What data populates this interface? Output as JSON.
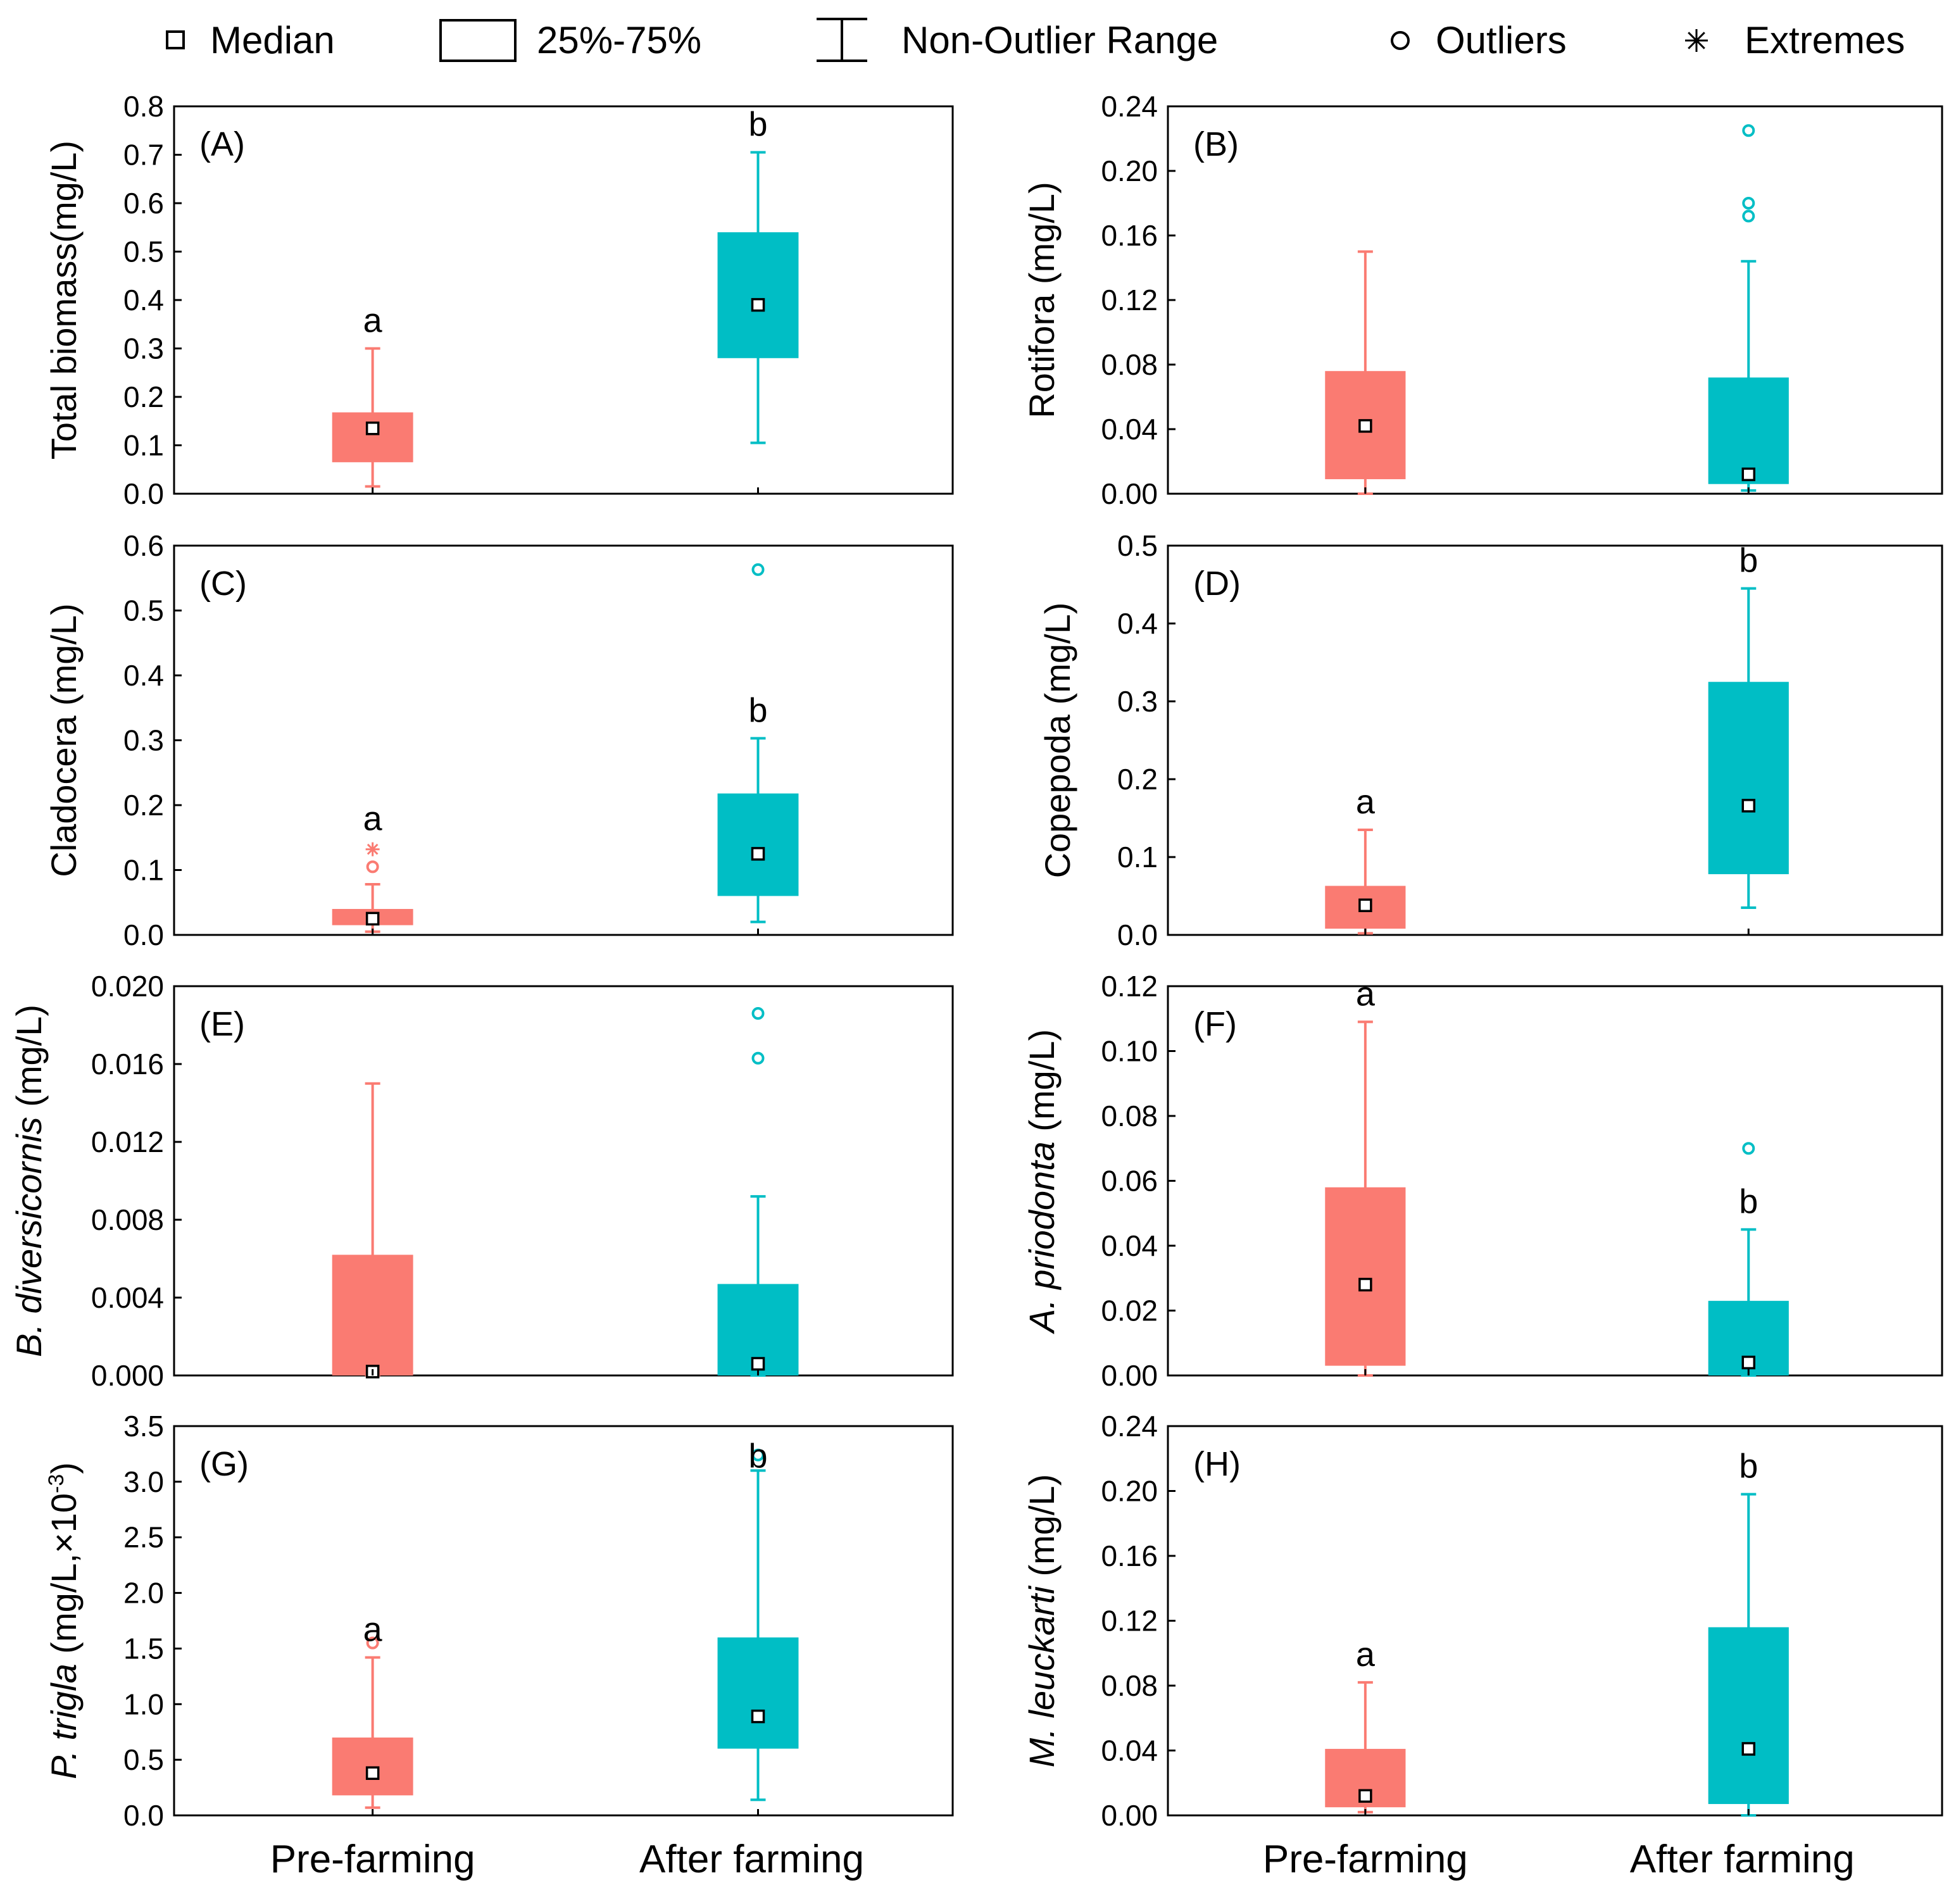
{
  "colors": {
    "pre": "#fa7b72",
    "after": "#00bec5",
    "axis": "#000000"
  },
  "legend": {
    "items": [
      {
        "label": "Median",
        "symbol": "square"
      },
      {
        "label": "25%-75%",
        "symbol": "box"
      },
      {
        "label": "Non-Outlier Range",
        "symbol": "whisker"
      },
      {
        "label": "Outliers",
        "symbol": "circle"
      },
      {
        "label": "Extremes",
        "symbol": "asterisk"
      }
    ]
  },
  "chart_data": [
    {
      "type": "box",
      "panel": "(A)",
      "ylabel": "Total biomass(mg/L)",
      "categories": [
        "Pre-farming",
        "After farming"
      ],
      "ylim": [
        0,
        0.8
      ],
      "yticks": [
        "0.0",
        "0.1",
        "0.2",
        "0.3",
        "0.4",
        "0.5",
        "0.6",
        "0.7",
        "0.8"
      ],
      "show_xlabels": false,
      "series": [
        {
          "name": "Pre-farming",
          "min": 0.015,
          "q1": 0.065,
          "median": 0.135,
          "q3": 0.168,
          "max": 0.3,
          "outliers": [],
          "extremes": [],
          "label": "a"
        },
        {
          "name": "After farming",
          "min": 0.105,
          "q1": 0.28,
          "median": 0.39,
          "q3": 0.54,
          "max": 0.705,
          "outliers": [],
          "extremes": [],
          "label": "b"
        }
      ]
    },
    {
      "type": "box",
      "panel": "(B)",
      "ylabel": "Rotifora (mg/L)",
      "categories": [
        "Pre-farming",
        "After farming"
      ],
      "ylim": [
        0,
        0.24
      ],
      "yticks": [
        "0.00",
        "0.04",
        "0.08",
        "0.12",
        "0.16",
        "0.20",
        "0.24"
      ],
      "show_xlabels": false,
      "series": [
        {
          "name": "Pre-farming",
          "min": 0.0,
          "q1": 0.009,
          "median": 0.042,
          "q3": 0.076,
          "max": 0.15,
          "outliers": [],
          "extremes": [],
          "label": ""
        },
        {
          "name": "After farming",
          "min": 0.002,
          "q1": 0.006,
          "median": 0.012,
          "q3": 0.072,
          "max": 0.144,
          "outliers": [
            0.172,
            0.18,
            0.225
          ],
          "extremes": [],
          "label": ""
        }
      ]
    },
    {
      "type": "box",
      "panel": "(C)",
      "ylabel": "Cladocera (mg/L)",
      "categories": [
        "Pre-farming",
        "After farming"
      ],
      "ylim": [
        0,
        0.6
      ],
      "yticks": [
        "0.0",
        "0.1",
        "0.2",
        "0.3",
        "0.4",
        "0.5",
        "0.6"
      ],
      "show_xlabels": false,
      "series": [
        {
          "name": "Pre-farming",
          "min": 0.005,
          "q1": 0.015,
          "median": 0.025,
          "q3": 0.04,
          "max": 0.078,
          "outliers": [
            0.105
          ],
          "extremes": [
            0.132
          ],
          "label": "a"
        },
        {
          "name": "After farming",
          "min": 0.02,
          "q1": 0.06,
          "median": 0.125,
          "q3": 0.218,
          "max": 0.303,
          "outliers": [
            0.563
          ],
          "extremes": [],
          "label": "b"
        }
      ]
    },
    {
      "type": "box",
      "panel": "(D)",
      "ylabel": "Copepoda (mg/L)",
      "categories": [
        "Pre-farming",
        "After farming"
      ],
      "ylim": [
        0,
        0.5
      ],
      "yticks": [
        "0.0",
        "0.1",
        "0.2",
        "0.3",
        "0.4",
        "0.5"
      ],
      "show_xlabels": false,
      "series": [
        {
          "name": "Pre-farming",
          "min": 0.002,
          "q1": 0.008,
          "median": 0.038,
          "q3": 0.063,
          "max": 0.135,
          "outliers": [],
          "extremes": [],
          "label": "a"
        },
        {
          "name": "After farming",
          "min": 0.035,
          "q1": 0.078,
          "median": 0.166,
          "q3": 0.325,
          "max": 0.445,
          "outliers": [],
          "extremes": [],
          "label": "b"
        }
      ]
    },
    {
      "type": "box",
      "panel": "(E)",
      "ylabel": "B. diversicornis (mg/L)",
      "ylabel_italic": "B. diversicornis",
      "ylabel_normal": " (mg/L)",
      "categories": [
        "Pre-farming",
        "After farming"
      ],
      "ylim": [
        0,
        0.02
      ],
      "yticks": [
        "0.000",
        "0.004",
        "0.008",
        "0.012",
        "0.016",
        "0.020"
      ],
      "show_xlabels": false,
      "series": [
        {
          "name": "Pre-farming",
          "min": 0.0,
          "q1": 0.0,
          "median": 0.0002,
          "q3": 0.0062,
          "max": 0.015,
          "outliers": [],
          "extremes": [],
          "label": ""
        },
        {
          "name": "After farming",
          "min": 0.0,
          "q1": 0.0,
          "median": 0.0006,
          "q3": 0.0047,
          "max": 0.0092,
          "outliers": [
            0.0163,
            0.0186
          ],
          "extremes": [],
          "label": ""
        }
      ]
    },
    {
      "type": "box",
      "panel": "(F)",
      "ylabel": "A. priodonta (mg/L)",
      "ylabel_italic": "A. priodonta",
      "ylabel_normal": " (mg/L)",
      "categories": [
        "Pre-farming",
        "After farming"
      ],
      "ylim": [
        0,
        0.12
      ],
      "yticks": [
        "0.00",
        "0.02",
        "0.04",
        "0.06",
        "0.08",
        "0.10",
        "0.12"
      ],
      "show_xlabels": false,
      "series": [
        {
          "name": "Pre-farming",
          "min": 0.0,
          "q1": 0.003,
          "median": 0.028,
          "q3": 0.058,
          "max": 0.109,
          "outliers": [],
          "extremes": [],
          "label": "a"
        },
        {
          "name": "After farming",
          "min": 0.0,
          "q1": 0.0,
          "median": 0.004,
          "q3": 0.023,
          "max": 0.045,
          "outliers": [
            0.07
          ],
          "extremes": [],
          "label": "b"
        }
      ]
    },
    {
      "type": "box",
      "panel": "(G)",
      "ylabel": "P. trigla (mg/L,×10⁻³)",
      "ylabel_italic": "P. trigla",
      "ylabel_normal": " (mg/L,×10",
      "ylabel_sup": "-3",
      "ylabel_tail": ")",
      "categories": [
        "Pre-farming",
        "After farming"
      ],
      "ylim": [
        0,
        3.5
      ],
      "yticks": [
        "0.0",
        "0.5",
        "1.0",
        "1.5",
        "2.0",
        "2.5",
        "3.0",
        "3.5"
      ],
      "show_xlabels": true,
      "series": [
        {
          "name": "Pre-farming",
          "min": 0.07,
          "q1": 0.18,
          "median": 0.38,
          "q3": 0.7,
          "max": 1.42,
          "outliers": [
            1.55
          ],
          "extremes": [],
          "label": "a"
        },
        {
          "name": "After farming",
          "min": 0.14,
          "q1": 0.6,
          "median": 0.89,
          "q3": 1.6,
          "max": 3.1,
          "outliers": [
            3.24
          ],
          "extremes": [],
          "label": "b"
        }
      ]
    },
    {
      "type": "box",
      "panel": "(H)",
      "ylabel": "M. leuckarti (mg/L)",
      "ylabel_italic": "M. leuckarti",
      "ylabel_normal": " (mg/L)",
      "categories": [
        "Pre-farming",
        "After farming"
      ],
      "ylim": [
        0,
        0.24
      ],
      "yticks": [
        "0.00",
        "0.04",
        "0.08",
        "0.12",
        "0.16",
        "0.20",
        "0.24"
      ],
      "show_xlabels": true,
      "series": [
        {
          "name": "Pre-farming",
          "min": 0.002,
          "q1": 0.005,
          "median": 0.012,
          "q3": 0.041,
          "max": 0.082,
          "outliers": [],
          "extremes": [],
          "label": "a"
        },
        {
          "name": "After farming",
          "min": 0.0,
          "q1": 0.007,
          "median": 0.041,
          "q3": 0.116,
          "max": 0.198,
          "outliers": [],
          "extremes": [],
          "label": "b"
        }
      ]
    }
  ]
}
